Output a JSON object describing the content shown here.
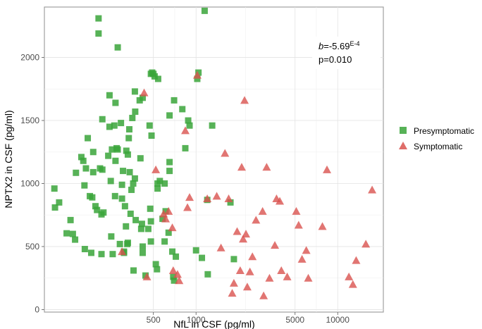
{
  "chart_data": {
    "type": "scatter",
    "title": "",
    "xlabel": "NfL in CSF (pg/ml)",
    "ylabel": "NPTX2 in CSF (pg/ml)",
    "x_scale": "log10",
    "xlim": [
      85,
      21000
    ],
    "ylim": [
      -20,
      2400
    ],
    "x_ticks": [
      500,
      1000,
      5000,
      10000
    ],
    "x_tick_labels": [
      "500",
      "1000",
      "5000",
      "10000"
    ],
    "y_ticks": [
      0,
      500,
      1000,
      1500,
      2000
    ],
    "y_tick_labels": [
      "0",
      "500",
      "1000",
      "1500",
      "2000"
    ],
    "grid": true,
    "legend_position": "right",
    "annotation": {
      "b_prefix": "b",
      "b_value": "=-5.69",
      "b_exp": "E-4",
      "p_text": "p=0.010"
    },
    "series": [
      {
        "name": "Presymptomatic",
        "color": "#3aa53a",
        "marker": "square",
        "points": [
          [
            100,
            960
          ],
          [
            101,
            810
          ],
          [
            108,
            850
          ],
          [
            122,
            605
          ],
          [
            130,
            710
          ],
          [
            135,
            600
          ],
          [
            140,
            555
          ],
          [
            142,
            1085
          ],
          [
            155,
            1210
          ],
          [
            160,
            1180
          ],
          [
            163,
            985
          ],
          [
            167,
            1120
          ],
          [
            172,
            1360
          ],
          [
            164,
            480
          ],
          [
            178,
            900
          ],
          [
            182,
            450
          ],
          [
            188,
            1090
          ],
          [
            188,
            1250
          ],
          [
            185,
            890
          ],
          [
            195,
            820
          ],
          [
            200,
            790
          ],
          [
            210,
            1120
          ],
          [
            215,
            755
          ],
          [
            218,
            1110
          ],
          [
            218,
            1510
          ],
          [
            222,
            770
          ],
          [
            215,
            440
          ],
          [
            205,
            2310
          ],
          [
            205,
            2190
          ],
          [
            240,
            1220
          ],
          [
            245,
            1700
          ],
          [
            245,
            1450
          ],
          [
            250,
            1020
          ],
          [
            252,
            580
          ],
          [
            255,
            1270
          ],
          [
            258,
            440
          ],
          [
            265,
            1460
          ],
          [
            268,
            900
          ],
          [
            270,
            1640
          ],
          [
            270,
            1180
          ],
          [
            275,
            1280
          ],
          [
            280,
            1270
          ],
          [
            290,
            520
          ],
          [
            295,
            1480
          ],
          [
            300,
            880
          ],
          [
            305,
            1100
          ],
          [
            300,
            990
          ],
          [
            310,
            460
          ],
          [
            310,
            450
          ],
          [
            315,
            820
          ],
          [
            320,
            660
          ],
          [
            322,
            1260
          ],
          [
            330,
            1230
          ],
          [
            335,
            1360
          ],
          [
            338,
            1430
          ],
          [
            340,
            1090
          ],
          [
            345,
            760
          ],
          [
            350,
            950
          ],
          [
            355,
            1520
          ],
          [
            360,
            1000
          ],
          [
            362,
            310
          ],
          [
            370,
            1040
          ],
          [
            370,
            1730
          ],
          [
            372,
            1570
          ],
          [
            375,
            710
          ],
          [
            280,
            2080
          ],
          [
            400,
            1660
          ],
          [
            405,
            1200
          ],
          [
            410,
            640
          ],
          [
            415,
            680
          ],
          [
            420,
            450
          ],
          [
            420,
            1680
          ],
          [
            440,
            270
          ],
          [
            460,
            640
          ],
          [
            470,
            1460
          ],
          [
            475,
            800
          ],
          [
            480,
            700
          ],
          [
            480,
            1870
          ],
          [
            485,
            1380
          ],
          [
            490,
            1880
          ],
          [
            500,
            1870
          ],
          [
            510,
            1850
          ],
          [
            520,
            360
          ],
          [
            530,
            320
          ],
          [
            535,
            1000
          ],
          [
            540,
            1830
          ],
          [
            535,
            960
          ],
          [
            555,
            1020
          ],
          [
            580,
            720
          ],
          [
            600,
            540
          ],
          [
            610,
            780
          ],
          [
            640,
            610
          ],
          [
            650,
            1540
          ],
          [
            650,
            1170
          ],
          [
            680,
            460
          ],
          [
            700,
            1660
          ],
          [
            700,
            230
          ],
          [
            720,
            420
          ],
          [
            690,
            260
          ],
          [
            800,
            1590
          ],
          [
            840,
            1280
          ],
          [
            880,
            1500
          ],
          [
            900,
            1460
          ],
          [
            1000,
            470
          ],
          [
            1020,
            1830
          ],
          [
            1040,
            1880
          ],
          [
            1100,
            410
          ],
          [
            1150,
            2370
          ],
          [
            1200,
            870
          ],
          [
            1210,
            280
          ],
          [
            1300,
            1460
          ],
          [
            1850,
            400
          ],
          [
            1750,
            850
          ],
          [
            330,
            530
          ],
          [
            327,
            520
          ],
          [
            420,
            500
          ],
          [
            480,
            540
          ],
          [
            600,
            1000
          ],
          [
            650,
            1100
          ]
        ]
      },
      {
        "name": "Symptomatic",
        "color": "#d9534f",
        "marker": "triangle",
        "points": [
          [
            300,
            460
          ],
          [
            430,
            1720
          ],
          [
            450,
            260
          ],
          [
            520,
            1110
          ],
          [
            590,
            760
          ],
          [
            610,
            720
          ],
          [
            640,
            780
          ],
          [
            680,
            650
          ],
          [
            690,
            310
          ],
          [
            740,
            280
          ],
          [
            760,
            230
          ],
          [
            840,
            1420
          ],
          [
            870,
            810
          ],
          [
            900,
            890
          ],
          [
            1020,
            1860
          ],
          [
            1200,
            880
          ],
          [
            1400,
            900
          ],
          [
            1500,
            490
          ],
          [
            1600,
            1240
          ],
          [
            1700,
            880
          ],
          [
            1800,
            130
          ],
          [
            1850,
            210
          ],
          [
            1950,
            620
          ],
          [
            2050,
            310
          ],
          [
            2100,
            1130
          ],
          [
            2150,
            560
          ],
          [
            2200,
            1660
          ],
          [
            2250,
            600
          ],
          [
            2300,
            180
          ],
          [
            2400,
            300
          ],
          [
            2500,
            420
          ],
          [
            2650,
            710
          ],
          [
            2950,
            780
          ],
          [
            3000,
            110
          ],
          [
            3150,
            1130
          ],
          [
            3300,
            250
          ],
          [
            3600,
            510
          ],
          [
            3700,
            880
          ],
          [
            3900,
            860
          ],
          [
            4000,
            310
          ],
          [
            4400,
            260
          ],
          [
            5100,
            780
          ],
          [
            5300,
            670
          ],
          [
            5600,
            400
          ],
          [
            6000,
            470
          ],
          [
            6200,
            250
          ],
          [
            7800,
            660
          ],
          [
            8400,
            1110
          ],
          [
            12000,
            260
          ],
          [
            12800,
            200
          ],
          [
            13500,
            390
          ],
          [
            15800,
            520
          ],
          [
            17500,
            950
          ]
        ]
      }
    ]
  },
  "legend": {
    "presymptomatic_label": "Presymptomatic",
    "symptomatic_label": "Symptomatic"
  }
}
